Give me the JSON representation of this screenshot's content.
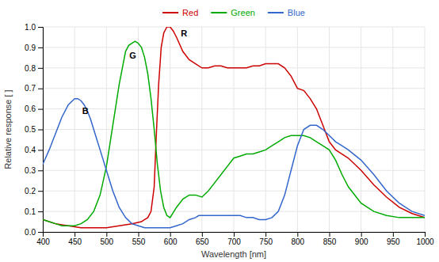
{
  "chart_data": {
    "type": "line",
    "xlabel": "Wavelength [nm]",
    "ylabel": "Relative response [ ]",
    "xlim": [
      400,
      1000
    ],
    "ylim": [
      0.0,
      1.0
    ],
    "xticks": [
      400,
      450,
      500,
      550,
      600,
      650,
      700,
      750,
      800,
      850,
      900,
      950,
      1000
    ],
    "yticks": [
      {
        "value": 0.0,
        "label": "0.0"
      },
      0.1,
      0.2,
      0.3,
      0.4,
      0.5,
      0.6,
      0.7,
      0.8,
      0.9,
      {
        "value": 1.0,
        "label": "1.0"
      }
    ],
    "grid": true,
    "legend": "top",
    "series": [
      {
        "name": "Red",
        "color": "#cc0000",
        "x": [
          400,
          420,
          440,
          460,
          480,
          500,
          520,
          540,
          555,
          560,
          565,
          570,
          575,
          578,
          582,
          586,
          590,
          595,
          600,
          605,
          610,
          620,
          630,
          640,
          650,
          660,
          670,
          680,
          690,
          700,
          710,
          720,
          730,
          740,
          750,
          760,
          770,
          780,
          790,
          800,
          810,
          820,
          830,
          840,
          850,
          860,
          870,
          880,
          890,
          900,
          920,
          940,
          960,
          980,
          1000
        ],
        "values": [
          0.06,
          0.04,
          0.03,
          0.02,
          0.02,
          0.02,
          0.03,
          0.04,
          0.05,
          0.06,
          0.07,
          0.1,
          0.22,
          0.45,
          0.72,
          0.9,
          0.97,
          1.0,
          1.0,
          0.98,
          0.95,
          0.88,
          0.84,
          0.82,
          0.8,
          0.8,
          0.81,
          0.81,
          0.8,
          0.8,
          0.8,
          0.8,
          0.81,
          0.81,
          0.82,
          0.82,
          0.82,
          0.8,
          0.76,
          0.7,
          0.69,
          0.65,
          0.6,
          0.52,
          0.44,
          0.4,
          0.38,
          0.36,
          0.33,
          0.3,
          0.23,
          0.17,
          0.12,
          0.09,
          0.07
        ]
      },
      {
        "name": "Green",
        "color": "#00aa00",
        "x": [
          400,
          410,
          420,
          430,
          440,
          450,
          460,
          470,
          480,
          490,
          500,
          510,
          520,
          530,
          535,
          540,
          545,
          550,
          555,
          560,
          565,
          570,
          575,
          580,
          585,
          590,
          595,
          600,
          610,
          620,
          630,
          640,
          650,
          660,
          670,
          680,
          690,
          700,
          710,
          720,
          730,
          740,
          750,
          760,
          770,
          780,
          790,
          800,
          810,
          820,
          830,
          840,
          850,
          860,
          870,
          880,
          900,
          920,
          940,
          960,
          980,
          1000
        ],
        "values": [
          0.06,
          0.05,
          0.04,
          0.03,
          0.03,
          0.03,
          0.04,
          0.06,
          0.1,
          0.18,
          0.32,
          0.52,
          0.72,
          0.88,
          0.91,
          0.92,
          0.93,
          0.92,
          0.9,
          0.85,
          0.77,
          0.65,
          0.5,
          0.33,
          0.2,
          0.12,
          0.08,
          0.07,
          0.12,
          0.16,
          0.18,
          0.18,
          0.17,
          0.2,
          0.24,
          0.28,
          0.32,
          0.36,
          0.37,
          0.38,
          0.38,
          0.39,
          0.4,
          0.42,
          0.44,
          0.46,
          0.47,
          0.47,
          0.47,
          0.46,
          0.44,
          0.42,
          0.4,
          0.35,
          0.28,
          0.22,
          0.14,
          0.1,
          0.08,
          0.07,
          0.07,
          0.07
        ]
      },
      {
        "name": "Blue",
        "color": "#3366cc",
        "x": [
          400,
          410,
          420,
          430,
          440,
          450,
          455,
          460,
          465,
          470,
          475,
          480,
          485,
          490,
          500,
          510,
          520,
          530,
          540,
          550,
          560,
          570,
          580,
          590,
          600,
          610,
          620,
          630,
          640,
          645,
          650,
          655,
          660,
          670,
          680,
          690,
          700,
          710,
          720,
          730,
          740,
          750,
          760,
          770,
          780,
          790,
          800,
          810,
          820,
          830,
          840,
          850,
          860,
          870,
          880,
          900,
          920,
          940,
          960,
          980,
          1000
        ],
        "values": [
          0.33,
          0.4,
          0.48,
          0.56,
          0.62,
          0.65,
          0.65,
          0.64,
          0.62,
          0.59,
          0.55,
          0.5,
          0.45,
          0.4,
          0.3,
          0.2,
          0.12,
          0.07,
          0.04,
          0.03,
          0.02,
          0.02,
          0.02,
          0.02,
          0.02,
          0.03,
          0.04,
          0.06,
          0.07,
          0.08,
          0.08,
          0.08,
          0.08,
          0.08,
          0.08,
          0.08,
          0.08,
          0.08,
          0.07,
          0.07,
          0.06,
          0.06,
          0.07,
          0.1,
          0.18,
          0.3,
          0.42,
          0.5,
          0.52,
          0.52,
          0.5,
          0.47,
          0.44,
          0.42,
          0.4,
          0.35,
          0.28,
          0.2,
          0.14,
          0.1,
          0.08
        ]
      }
    ],
    "annotations": [
      {
        "text": "R",
        "x": 617,
        "y": 0.955
      },
      {
        "text": "G",
        "x": 536,
        "y": 0.845
      },
      {
        "text": "B",
        "x": 462,
        "y": 0.575
      }
    ]
  }
}
